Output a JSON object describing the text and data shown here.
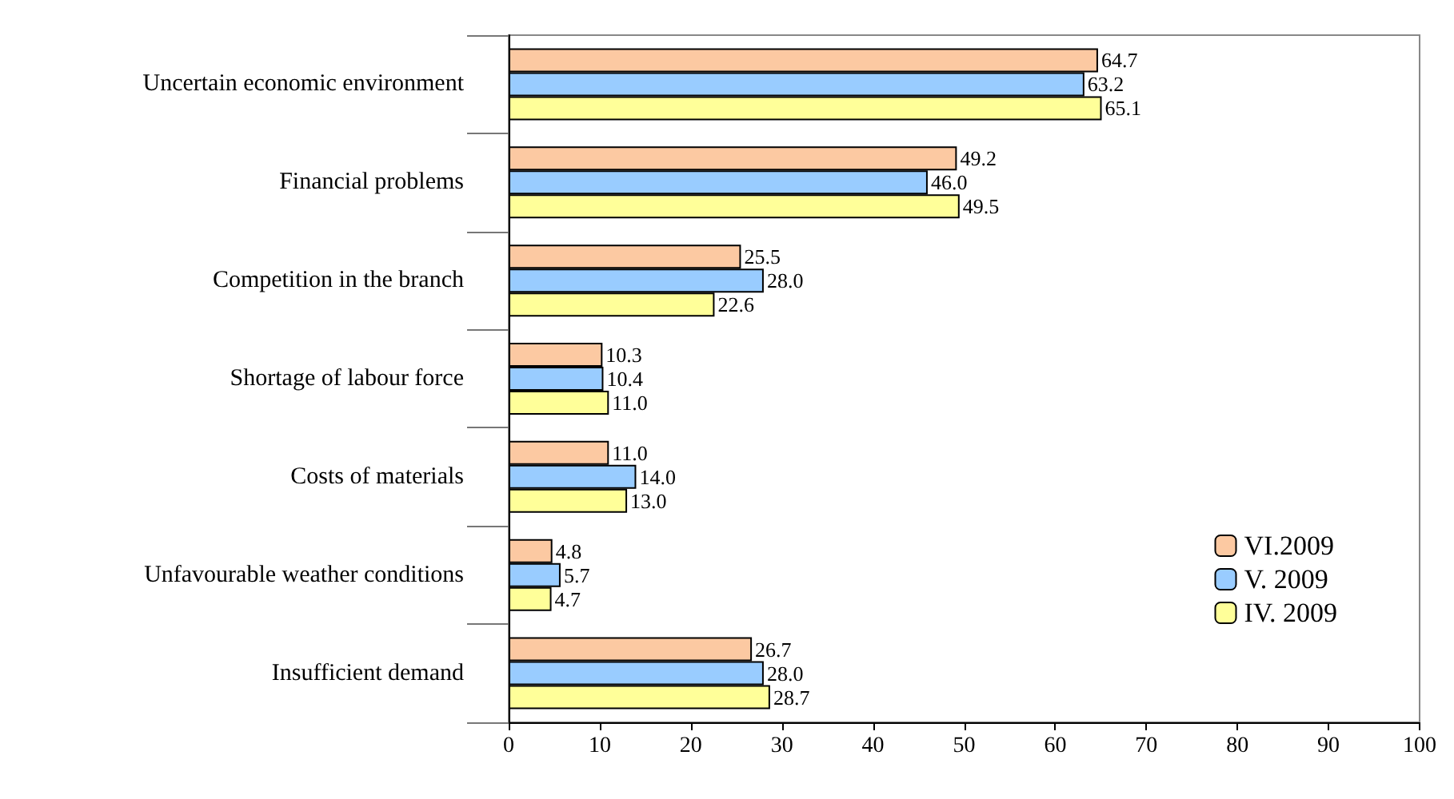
{
  "chart_data": {
    "type": "bar",
    "orientation": "horizontal",
    "categories": [
      "Uncertain economic environment",
      "Financial problems",
      "Competition in the branch",
      "Shortage of labour force",
      "Costs of materials",
      "Unfavourable weather conditions",
      "Insufficient demand"
    ],
    "series": [
      {
        "name": "VI.2009",
        "color": "#fcc9a2",
        "values": [
          64.7,
          49.2,
          25.5,
          10.3,
          11.0,
          4.8,
          26.7
        ],
        "value_labels": [
          "64.7",
          "49.2",
          "25.5",
          "10.3",
          "11.0",
          "4.8",
          "26.7"
        ]
      },
      {
        "name": "V. 2009",
        "color": "#99ccff",
        "values": [
          63.2,
          46.0,
          28.0,
          10.4,
          14.0,
          5.7,
          28.0
        ],
        "value_labels": [
          "63.2",
          "46.0",
          "28.0",
          "10.4",
          "14.0",
          "5.7",
          "28.0"
        ]
      },
      {
        "name": "IV. 2009",
        "color": "#ffff99",
        "values": [
          65.1,
          49.5,
          22.6,
          11.0,
          13.0,
          4.7,
          28.7
        ],
        "value_labels": [
          "65.1",
          "49.5",
          "22.6",
          "11.0",
          "13.0",
          "4.7",
          "28.7"
        ]
      }
    ],
    "xlim": [
      0,
      100
    ],
    "xticks": [
      0,
      10,
      20,
      30,
      40,
      50,
      60,
      70,
      80,
      90,
      100
    ],
    "grid": false,
    "legend": "bottom right"
  }
}
